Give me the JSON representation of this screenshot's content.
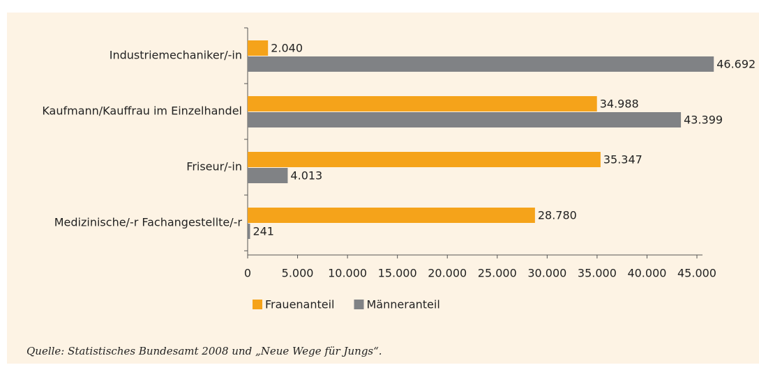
{
  "chart_data": {
    "type": "barh",
    "categories": [
      "Industriemechaniker/-in",
      "Kaufmann/Kauffrau im Einzelhandel",
      "Friseur/-in",
      "Medizinische/-r Fachangestellte/-r"
    ],
    "series": [
      {
        "name": "Frauenanteil",
        "color": "#f5a31a",
        "values": [
          2040,
          34988,
          35347,
          28780
        ],
        "value_labels": [
          "2.040",
          "34.988",
          "35.347",
          "28.780"
        ]
      },
      {
        "name": "Männeranteil",
        "color": "#808285",
        "values": [
          46692,
          43399,
          4013,
          241
        ],
        "value_labels": [
          "46.692",
          "43.399",
          "4.013",
          "241"
        ]
      }
    ],
    "xlim": [
      0,
      45000
    ],
    "xticks": [
      0,
      {
        "value": 5000,
        "label": "5.000"
      },
      {
        "value": 10000,
        "label": "10.000"
      },
      {
        "value": 15000,
        "label": "15.000"
      },
      {
        "value": 20000,
        "label": "20.000"
      },
      {
        "value": 25000,
        "label": "25.000"
      },
      {
        "value": 30000,
        "label": "30.000"
      },
      {
        "value": 35000,
        "label": "35.000"
      },
      {
        "value": 40000,
        "label": "40.000"
      },
      {
        "value": 45000,
        "label": "45.000"
      }
    ],
    "legend": "bottom",
    "source": "Quelle: Statistisches Bundesamt 2008 und „Neue Wege für Jungs“."
  }
}
